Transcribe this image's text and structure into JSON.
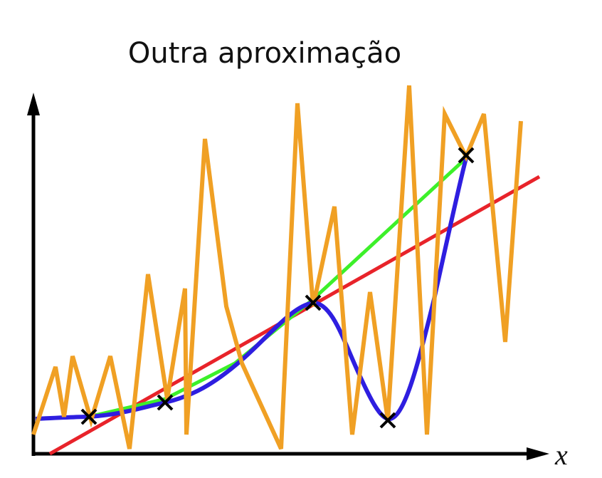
{
  "title": "Outra aproximação",
  "x_axis_label": "x"
}
